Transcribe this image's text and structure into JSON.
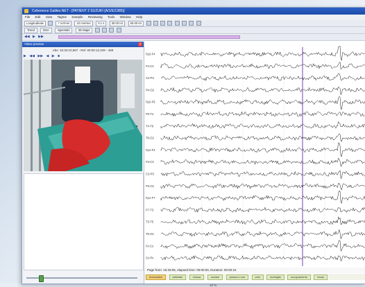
{
  "window": {
    "title": "Coherence Galileo.NET - [PATIENT 2 SUZUKI (A/1/E/1385)]"
  },
  "menu": [
    "File",
    "Edit",
    "View",
    "Tagme",
    "Samplin",
    "Reviewing",
    "Tools",
    "Window",
    "Help"
  ],
  "toolbar1": {
    "montage": "Longitudinale",
    "sensitivity": "7 uV/mm",
    "speed": "10 mm/sec",
    "tc": "0.1 s",
    "hf": "30.00 Hz",
    "notch": "50.00 Hz"
  },
  "toolbar2": {
    "tabs": [
      "Trend",
      "DSA",
      "Spectrals",
      "2D Maps"
    ]
  },
  "video_panel": {
    "header": "Video preview",
    "close_glyph": "×",
    "time": "Abs: 15:33:10,567 - Rel: 00:00:12,349 - 469",
    "controls": [
      "▶",
      "◀◀",
      "▶▶",
      "◀",
      "▶",
      "■"
    ]
  },
  "eeg": {
    "channels": [
      "Fp2-F4",
      "F4-C4",
      "C4-P4",
      "P4-O2",
      "Fp2-F8",
      "F8-T4",
      "T4-T6",
      "T6-O2",
      "Fp1-F3",
      "F3-C3",
      "C3-P3",
      "P3-O1",
      "Fp1-F7",
      "F7-T3",
      "T3-T5",
      "T5-O1",
      "Fz-Cz",
      "Cz-Pz"
    ],
    "cursor_color": "#7a3fb3"
  },
  "status": {
    "text": "Page from: 15:33:05, elapsed time: 00:00:00, Duration: 00:00:15"
  },
  "events": [
    "Annotation",
    "artefatto",
    "chiusa",
    "ruotare",
    "possa lo oce",
    "crisi",
    "occhiglia",
    "occupamento",
    "focus"
  ],
  "footer": {
    "scroll_label": "10 %"
  }
}
